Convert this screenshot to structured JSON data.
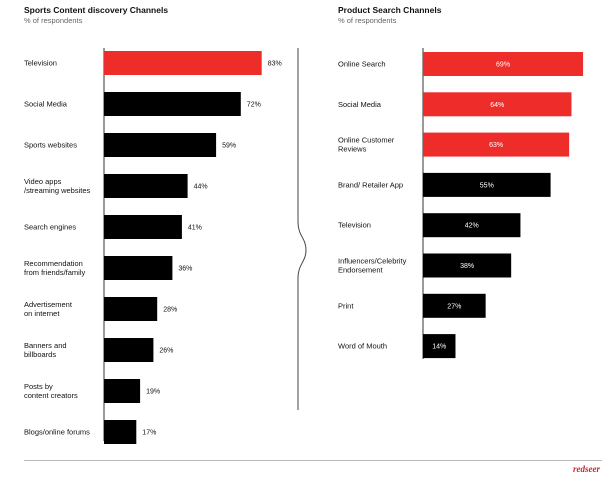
{
  "chart_data": [
    {
      "type": "bar",
      "orientation": "horizontal",
      "title": "Sports Content discovery Channels",
      "subtitle": "% of respondents",
      "categories": [
        "Television",
        "Social Media",
        "Sports websites",
        "Video apps\n/streaming websites",
        "Search engines",
        "Recommendation\nfrom friends/family",
        "Advertisement\non internet",
        "Banners and\nbillboards",
        "Posts by\ncontent creators",
        "Blogs/online forums"
      ],
      "values": [
        83,
        72,
        59,
        44,
        41,
        36,
        28,
        26,
        19,
        17
      ],
      "value_labels": [
        "83%",
        "72%",
        "59%",
        "44%",
        "41%",
        "36%",
        "28%",
        "26%",
        "19%",
        "17%"
      ],
      "highlight": [
        true,
        false,
        false,
        false,
        false,
        false,
        false,
        false,
        false,
        false
      ],
      "label_position": "outside",
      "xlim": [
        0,
        100
      ]
    },
    {
      "type": "bar",
      "orientation": "horizontal",
      "title": "Product Search Channels",
      "subtitle": "% of respondents",
      "categories": [
        "Online Search",
        "Social Media",
        "Online Customer\nReviews",
        "Brand/ Retailer App",
        "Television",
        "Influencers/Celebrity\nEndorsement",
        "Print",
        "Word of Mouth"
      ],
      "values": [
        69,
        64,
        63,
        55,
        42,
        38,
        27,
        14
      ],
      "value_labels": [
        "69%",
        "64%",
        "63%",
        "55%",
        "42%",
        "38%",
        "27%",
        "14%"
      ],
      "highlight": [
        true,
        true,
        true,
        false,
        false,
        false,
        false,
        false
      ],
      "label_position": "inside",
      "xlim": [
        0,
        100
      ]
    }
  ],
  "colors": {
    "highlight": "#ee2d2b",
    "default": "#000000",
    "divider": "#444444"
  },
  "brand": {
    "logo_text": "redseer"
  }
}
